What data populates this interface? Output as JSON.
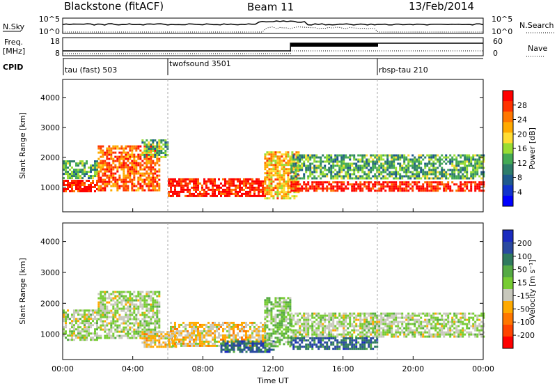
{
  "header": {
    "station": "Blackstone (fitACF)",
    "beam": "Beam 11",
    "date": "13/Feb/2014"
  },
  "noise_panel": {
    "left_label": "N.Sky",
    "right_label": "N.Search",
    "left_ticks": [
      "10^5",
      "10^0"
    ],
    "right_ticks": [
      "10^5",
      "10^0"
    ]
  },
  "freq_panel": {
    "left_label_1": "Freq.",
    "left_label_2": "[MHz]",
    "right_label": "Nave",
    "left_ticks": [
      "18",
      "8"
    ],
    "right_ticks": [
      "60",
      "0"
    ]
  },
  "cpid": {
    "label": "CPID",
    "segments": [
      {
        "name": "tau (fast) 503",
        "start_hour": 0
      },
      {
        "name": "twofsound 3501",
        "start_hour": 6
      },
      {
        "name": "rbsp-tau 210",
        "start_hour": 18
      }
    ]
  },
  "power_colorbar": {
    "label": "Power [dB]",
    "ticks": [
      "28",
      "24",
      "20",
      "16",
      "12",
      "8",
      "4"
    ],
    "colors": [
      "#ff0000",
      "#ff3300",
      "#ff7700",
      "#ffaa00",
      "#ffdd33",
      "#99dd33",
      "#44aa55",
      "#2e7d6a",
      "#1f5a8c",
      "#1133cc",
      "#0000ff"
    ]
  },
  "velocity_colorbar": {
    "label": "Velocity [m s⁻¹]",
    "ticks": [
      "200",
      "100",
      "50",
      "15",
      "-15",
      "-50",
      "-100",
      "-200"
    ],
    "colors": [
      "#1a2bbf",
      "#2a4aa0",
      "#2f7a5e",
      "#55aa44",
      "#77cc33",
      "#c8c8bc",
      "#ffaa00",
      "#ff7700",
      "#ff4400",
      "#ff0000"
    ]
  },
  "x_axis": {
    "label": "Time UT",
    "ticks": [
      "00:00",
      "04:00",
      "08:00",
      "12:00",
      "16:00",
      "20:00",
      "00:00"
    ]
  },
  "y_axis": {
    "label": "Slant Range [km]",
    "ticks": [
      "1000",
      "2000",
      "3000",
      "4000"
    ]
  },
  "chart_data": [
    {
      "type": "heatmap",
      "panel": "power",
      "x_range_hours": [
        0,
        24
      ],
      "y_range_km": [
        180,
        4600
      ],
      "colorbar_range_db": [
        0,
        30
      ],
      "xlabel": "Time UT",
      "ylabel": "Slant Range [km]",
      "colorbar_label": "Power [dB]",
      "bands": [
        {
          "t": [
            0,
            2
          ],
          "r": [
            900,
            1250
          ],
          "value_db": 28
        },
        {
          "t": [
            0,
            2
          ],
          "r": [
            1300,
            1900
          ],
          "value_db": 12
        },
        {
          "t": [
            2,
            5.5
          ],
          "r": [
            900,
            2400
          ],
          "value_db": 24,
          "note": "rising echo 900→2400 km"
        },
        {
          "t": [
            4.5,
            6
          ],
          "r": [
            2000,
            2600
          ],
          "value_db": 12
        },
        {
          "t": [
            6,
            11.5
          ],
          "r": [
            700,
            1300
          ],
          "value_db": 28
        },
        {
          "t": [
            11.5,
            13.5
          ],
          "r": [
            600,
            2200
          ],
          "value_db": 20,
          "note": "descending echo"
        },
        {
          "t": [
            13,
            24
          ],
          "r": [
            900,
            1200
          ],
          "value_db": 28
        },
        {
          "t": [
            13,
            24
          ],
          "r": [
            1300,
            2100
          ],
          "value_db": 12
        }
      ]
    },
    {
      "type": "heatmap",
      "panel": "velocity",
      "x_range_hours": [
        0,
        24
      ],
      "y_range_km": [
        180,
        4600
      ],
      "colorbar_range_ms": [
        -250,
        250
      ],
      "xlabel": "Time UT",
      "ylabel": "Slant Range [km]",
      "colorbar_label": "Velocity [m s⁻¹]",
      "bands": [
        {
          "t": [
            0,
            2
          ],
          "r": [
            800,
            1800
          ],
          "value_ms": 0
        },
        {
          "t": [
            2,
            5.5
          ],
          "r": [
            900,
            2400
          ],
          "value_ms": 0
        },
        {
          "t": [
            4.5,
            6.5
          ],
          "r": [
            600,
            1100
          ],
          "value_ms": -50
        },
        {
          "t": [
            6,
            11.5
          ],
          "r": [
            600,
            1400
          ],
          "value_ms": -50
        },
        {
          "t": [
            9,
            12
          ],
          "r": [
            400,
            800
          ],
          "value_ms": 150
        },
        {
          "t": [
            11.5,
            13
          ],
          "r": [
            600,
            2200
          ],
          "value_ms": 30
        },
        {
          "t": [
            13,
            24
          ],
          "r": [
            900,
            1700
          ],
          "value_ms": 0
        },
        {
          "t": [
            13,
            18
          ],
          "r": [
            500,
            900
          ],
          "value_ms": 150
        }
      ]
    }
  ]
}
